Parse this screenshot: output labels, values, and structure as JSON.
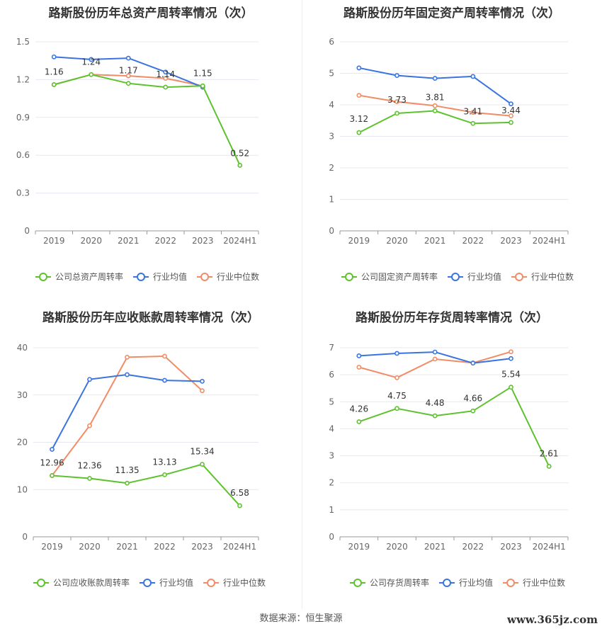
{
  "colors": {
    "company": "#5ec22e",
    "avg": "#3a74e0",
    "median": "#f08c66",
    "grid": "#e6e8f0",
    "axis": "#666666"
  },
  "x_categories": [
    "2019",
    "2020",
    "2021",
    "2022",
    "2023",
    "2024H1"
  ],
  "legend_labels": {
    "avg": "行业均值",
    "median": "行业中位数"
  },
  "source": "数据来源：恒生聚源",
  "watermark": "www.365jz.com",
  "chart_data": [
    {
      "type": "line",
      "title": "路斯股份历年总资产周转率情况（次）",
      "categories": [
        "2019",
        "2020",
        "2021",
        "2022",
        "2023",
        "2024H1"
      ],
      "ylim": [
        0,
        1.5
      ],
      "yticks": [
        "0",
        "0.3",
        "0.6",
        "0.9",
        "1.2",
        "1.5"
      ],
      "grid": true,
      "legend_position": "bottom",
      "series": [
        {
          "name": "公司总资产周转率",
          "key": "company",
          "values": [
            1.16,
            1.24,
            1.17,
            1.14,
            1.15,
            0.52
          ],
          "labels": [
            "1.16",
            "1.24",
            "1.17",
            "1.14",
            "1.15",
            "0.52"
          ]
        },
        {
          "name": "行业均值",
          "key": "avg",
          "values": [
            1.38,
            1.36,
            1.37,
            1.26,
            1.14,
            null
          ]
        },
        {
          "name": "行业中位数",
          "key": "median",
          "values": [
            1.16,
            1.24,
            1.23,
            1.21,
            1.15,
            null
          ]
        }
      ]
    },
    {
      "type": "line",
      "title": "路斯股份历年固定资产周转率情况（次）",
      "categories": [
        "2019",
        "2020",
        "2021",
        "2022",
        "2023",
        "2024H1"
      ],
      "ylim": [
        0,
        6
      ],
      "yticks": [
        "0",
        "1",
        "2",
        "3",
        "4",
        "5",
        "6"
      ],
      "grid": true,
      "legend_position": "bottom",
      "series": [
        {
          "name": "公司固定资产周转率",
          "key": "company",
          "values": [
            3.12,
            3.73,
            3.81,
            3.41,
            3.44,
            null
          ],
          "labels": [
            "3.12",
            "3.73",
            "3.81",
            "3.41",
            "3.44",
            ""
          ]
        },
        {
          "name": "行业均值",
          "key": "avg",
          "values": [
            5.17,
            4.93,
            4.84,
            4.9,
            4.03,
            null
          ]
        },
        {
          "name": "行业中位数",
          "key": "median",
          "values": [
            4.3,
            4.1,
            3.97,
            3.76,
            3.65,
            null
          ]
        }
      ]
    },
    {
      "type": "line",
      "title": "路斯股份历年应收账款周转率情况（次）",
      "categories": [
        "2019",
        "2020",
        "2021",
        "2022",
        "2023",
        "2024H1"
      ],
      "ylim": [
        0,
        40
      ],
      "yticks": [
        "0",
        "10",
        "20",
        "30",
        "40"
      ],
      "grid": true,
      "legend_position": "bottom",
      "series": [
        {
          "name": "公司应收账款周转率",
          "key": "company",
          "values": [
            12.96,
            12.36,
            11.35,
            13.13,
            15.34,
            6.58
          ],
          "labels": [
            "12.96",
            "12.36",
            "11.35",
            "13.13",
            "15.34",
            "6.58"
          ]
        },
        {
          "name": "行业均值",
          "key": "avg",
          "values": [
            18.5,
            33.3,
            34.3,
            33.1,
            32.9,
            null
          ]
        },
        {
          "name": "行业中位数",
          "key": "median",
          "values": [
            12.96,
            23.5,
            38.0,
            38.2,
            30.9,
            null
          ]
        }
      ]
    },
    {
      "type": "line",
      "title": "路斯股份历年存货周转率情况（次）",
      "categories": [
        "2019",
        "2020",
        "2021",
        "2022",
        "2023",
        "2024H1"
      ],
      "ylim": [
        0,
        7
      ],
      "yticks": [
        "0",
        "1",
        "2",
        "3",
        "4",
        "5",
        "6",
        "7"
      ],
      "grid": true,
      "legend_position": "bottom",
      "series": [
        {
          "name": "公司存货周转率",
          "key": "company",
          "values": [
            4.26,
            4.75,
            4.48,
            4.66,
            5.54,
            2.61
          ],
          "labels": [
            "4.26",
            "4.75",
            "4.48",
            "4.66",
            "5.54",
            "2.61"
          ]
        },
        {
          "name": "行业均值",
          "key": "avg",
          "values": [
            6.7,
            6.79,
            6.84,
            6.43,
            6.6,
            null
          ]
        },
        {
          "name": "行业中位数",
          "key": "median",
          "values": [
            6.28,
            5.89,
            6.58,
            6.44,
            6.85,
            null
          ]
        }
      ]
    }
  ]
}
